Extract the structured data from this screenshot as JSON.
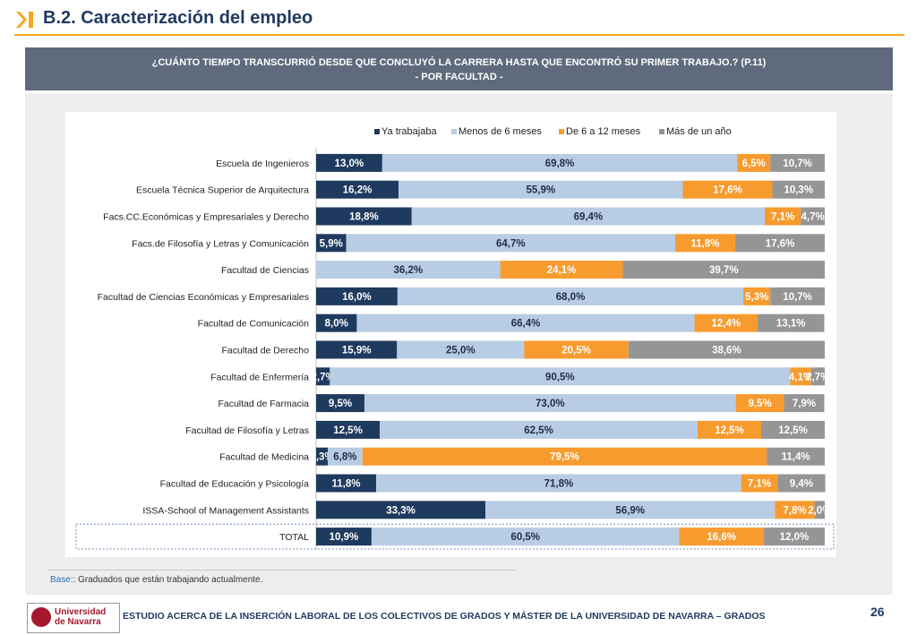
{
  "page": {
    "title": "B.2. Caracterización del empleo",
    "question_line1": "¿CUÁNTO TIEMPO TRANSCURRIÓ DESDE QUE CONCLUYÓ LA CARRERA HASTA QUE ENCONTRÓ SU PRIMER TRABAJO.? (P.11)",
    "question_line2": "- POR FACULTAD -",
    "base_label": "Base:",
    "base_text": ": Graduados que están trabajando actualmente.",
    "footer_text": "ESTUDIO ACERCA DE LA INSERCIÓN LABORAL DE LOS COLECTIVOS DE GRADOS Y MÁSTER DE LA UNIVERSIDAD DE NAVARRA – GRADOS",
    "page_number": "26",
    "logo_line1": "Universidad",
    "logo_line2": "de Navarra",
    "accent_color": "#f5a623",
    "header_color": "#5f6b7d"
  },
  "chart_data": {
    "type": "bar",
    "orientation": "horizontal",
    "stacked": true,
    "percent": true,
    "legend_position": "top",
    "categories": [
      "Escuela de Ingenieros",
      "Escuela Técnica Superior de Arquitectura",
      "Facs.CC.Económicas y Empresariales y Derecho",
      "Facs.de Filosofía y Letras y Comunicación",
      "Facultad de Ciencias",
      "Facultad de Ciencias Económicas y Empresariales",
      "Facultad de Comunicación",
      "Facultad de Derecho",
      "Facultad de Enfermería",
      "Facultad de Farmacia",
      "Facultad de Filosofía y Letras",
      "Facultad de Medicina",
      "Facultad de Educación y Psicología",
      "ISSA-School of Management Assistants",
      "TOTAL"
    ],
    "series": [
      {
        "name": "Ya trabajaba",
        "color": "#1f3a5f",
        "values": [
          13.0,
          16.2,
          18.8,
          5.9,
          0,
          16.0,
          8.0,
          15.9,
          2.7,
          9.5,
          12.5,
          2.3,
          11.8,
          33.3,
          10.9
        ],
        "labels": [
          "13,0%",
          "16,2%",
          "18,8%",
          "5,9%",
          "",
          "16,0%",
          "8,0%",
          "15,9%",
          "2,7%",
          "9,5%",
          "12,5%",
          "2,3%",
          "11,8%",
          "33,3%",
          "10,9%"
        ]
      },
      {
        "name": "Menos de 6 meses",
        "color": "#b8cce4",
        "values": [
          69.8,
          55.9,
          69.4,
          64.7,
          36.2,
          68.0,
          66.4,
          25.0,
          90.5,
          73.0,
          62.5,
          6.8,
          71.8,
          56.9,
          60.5
        ],
        "labels": [
          "69,8%",
          "55,9%",
          "69,4%",
          "64,7%",
          "36,2%",
          "68,0%",
          "66,4%",
          "25,0%",
          "90,5%",
          "73,0%",
          "62,5%",
          "6,8%",
          "71,8%",
          "56,9%",
          "60,5%"
        ]
      },
      {
        "name": "De 6 a 12 meses",
        "color": "#f79b2e",
        "values": [
          6.5,
          17.6,
          7.1,
          11.8,
          24.1,
          5.3,
          12.4,
          20.5,
          4.1,
          9.5,
          12.5,
          79.5,
          7.1,
          7.8,
          16.6
        ],
        "labels": [
          "6,5%",
          "17,6%",
          "7,1%",
          "11,8%",
          "24,1%",
          "5,3%",
          "12,4%",
          "20,5%",
          "4,1%",
          "9,5%",
          "12,5%",
          "79,5%",
          "7,1%",
          "7,8%",
          "16,6%"
        ]
      },
      {
        "name": "Más de un año",
        "color": "#959595",
        "values": [
          10.7,
          10.3,
          4.7,
          17.6,
          39.7,
          10.7,
          13.1,
          38.6,
          2.7,
          7.9,
          12.5,
          11.4,
          9.4,
          2.0,
          12.0
        ],
        "labels": [
          "10,7%",
          "10,3%",
          "4,7%",
          "17,6%",
          "39,7%",
          "10,7%",
          "13,1%",
          "38,6%",
          "2,7%",
          "7,9%",
          "12,5%",
          "11,4%",
          "9,4%",
          "2,0%",
          "12,0%"
        ]
      }
    ]
  }
}
